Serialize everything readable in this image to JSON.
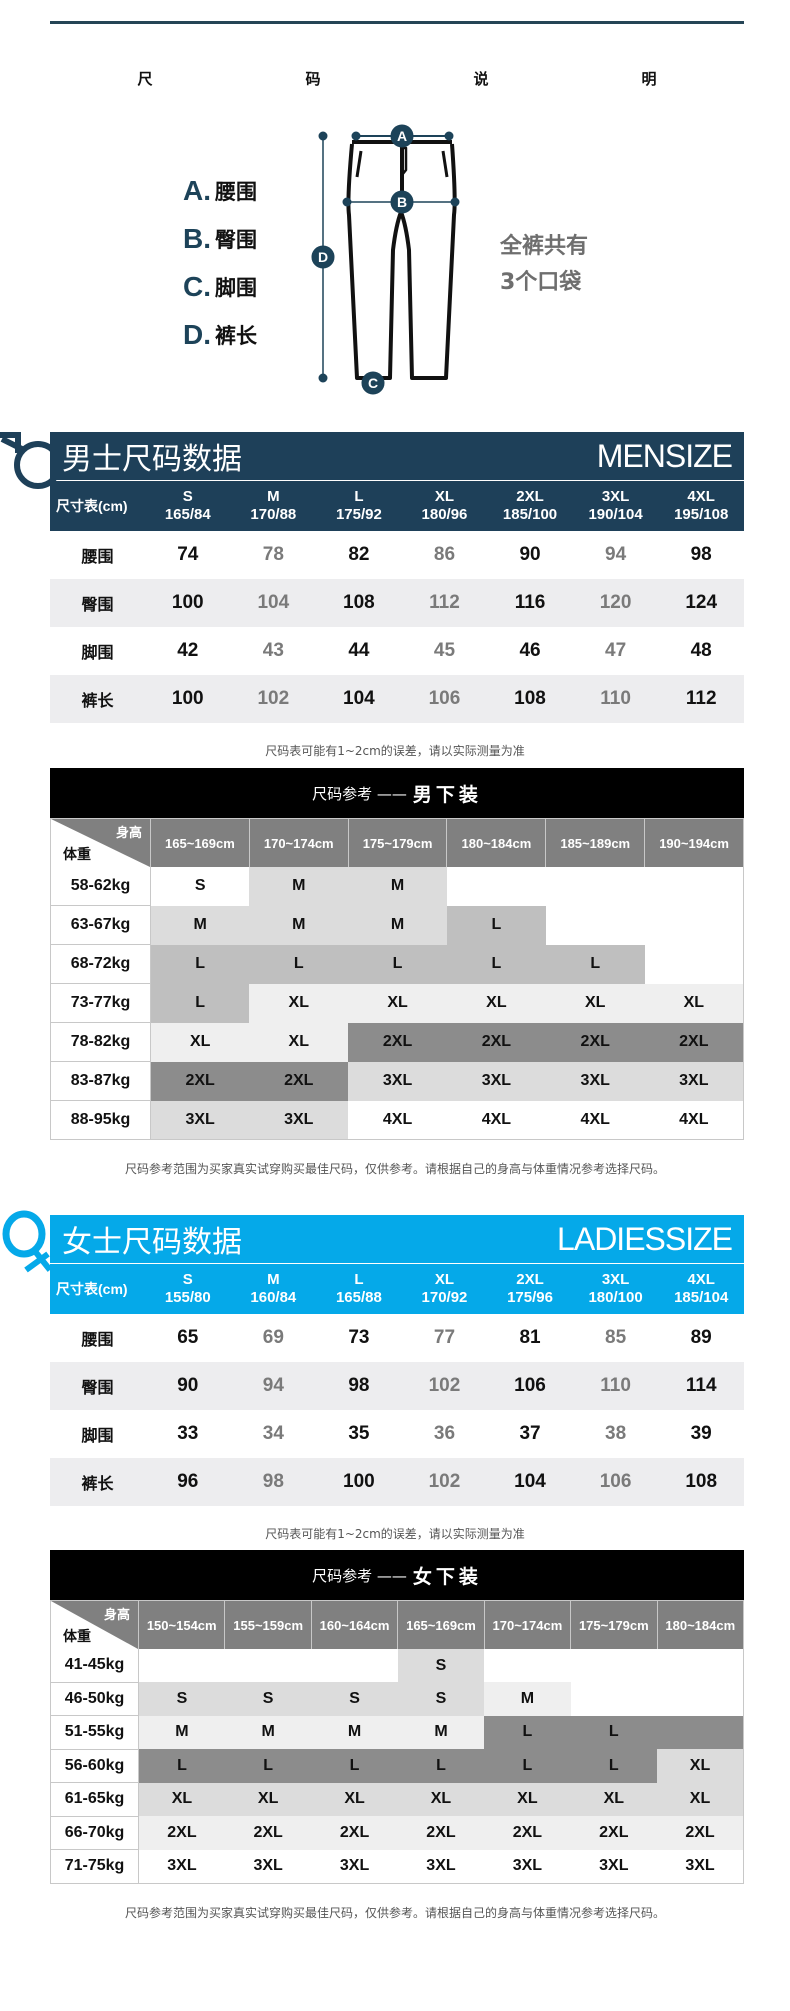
{
  "header": {
    "heading_chars": [
      "尺",
      "码",
      "说",
      "明"
    ]
  },
  "diagram": {
    "legend": [
      {
        "letter": "A.",
        "text": "腰围"
      },
      {
        "letter": "B.",
        "text": "臀围"
      },
      {
        "letter": "C.",
        "text": "脚围"
      },
      {
        "letter": "D.",
        "text": "裤长"
      }
    ],
    "markers": {
      "a": "A",
      "b": "B",
      "c": "C",
      "d": "D"
    },
    "pocket_note": [
      "全裤共有",
      "3个口袋"
    ]
  },
  "colors": {
    "men_accent": "#1e4059",
    "women_accent": "#05a9e9",
    "ref_header": "#808080"
  },
  "men": {
    "title_cn": "男士尺码数据",
    "title_en": "MENSIZE",
    "gender_icon": "male-symbol-icon",
    "corner_label": "尺寸表(cm)",
    "sizes": [
      {
        "size": "S",
        "spec": "165/84"
      },
      {
        "size": "M",
        "spec": "170/88"
      },
      {
        "size": "L",
        "spec": "175/92"
      },
      {
        "size": "XL",
        "spec": "180/96"
      },
      {
        "size": "2XL",
        "spec": "185/100"
      },
      {
        "size": "3XL",
        "spec": "190/104"
      },
      {
        "size": "4XL",
        "spec": "195/108"
      }
    ],
    "rows": [
      {
        "label": "腰围",
        "values": [
          "74",
          "78",
          "82",
          "86",
          "90",
          "94",
          "98"
        ]
      },
      {
        "label": "臀围",
        "values": [
          "100",
          "104",
          "108",
          "112",
          "116",
          "120",
          "124"
        ]
      },
      {
        "label": "脚围",
        "values": [
          "42",
          "43",
          "44",
          "45",
          "46",
          "47",
          "48"
        ]
      },
      {
        "label": "裤长",
        "values": [
          "100",
          "102",
          "104",
          "106",
          "108",
          "110",
          "112"
        ]
      }
    ],
    "note": "尺码表可能有1~2cm的误差，请以实际测量为准"
  },
  "men_ref": {
    "band_prefix": "尺码参考 ——",
    "band_title": "男下装",
    "corner_height": "身高",
    "corner_weight": "体重",
    "heights": [
      "165~169cm",
      "170~174cm",
      "175~179cm",
      "180~184cm",
      "185~189cm",
      "190~194cm"
    ],
    "rows": [
      {
        "weight": "58-62kg",
        "sizes": [
          "S",
          "M",
          "M",
          "",
          "",
          ""
        ],
        "bg": [
          "#ffffff",
          "#dcdcdc",
          "#dcdcdc",
          "#ffffff",
          "#ffffff",
          "#ffffff"
        ]
      },
      {
        "weight": "63-67kg",
        "sizes": [
          "M",
          "M",
          "M",
          "L",
          "",
          ""
        ],
        "bg": [
          "#dcdcdc",
          "#dcdcdc",
          "#dcdcdc",
          "#bfbfbf",
          "#ffffff",
          "#ffffff"
        ]
      },
      {
        "weight": "68-72kg",
        "sizes": [
          "L",
          "L",
          "L",
          "L",
          "L",
          ""
        ],
        "bg": [
          "#bfbfbf",
          "#bfbfbf",
          "#bfbfbf",
          "#bfbfbf",
          "#bfbfbf",
          "#ffffff"
        ]
      },
      {
        "weight": "73-77kg",
        "sizes": [
          "L",
          "XL",
          "XL",
          "XL",
          "XL",
          "XL"
        ],
        "bg": [
          "#bfbfbf",
          "#efefef",
          "#efefef",
          "#efefef",
          "#efefef",
          "#efefef"
        ]
      },
      {
        "weight": "78-82kg",
        "sizes": [
          "XL",
          "XL",
          "2XL",
          "2XL",
          "2XL",
          "2XL"
        ],
        "bg": [
          "#efefef",
          "#efefef",
          "#8c8c8c",
          "#8c8c8c",
          "#8c8c8c",
          "#8c8c8c"
        ]
      },
      {
        "weight": "83-87kg",
        "sizes": [
          "2XL",
          "2XL",
          "3XL",
          "3XL",
          "3XL",
          "3XL"
        ],
        "bg": [
          "#8c8c8c",
          "#8c8c8c",
          "#dcdcdc",
          "#dcdcdc",
          "#dcdcdc",
          "#dcdcdc"
        ]
      },
      {
        "weight": "88-95kg",
        "sizes": [
          "3XL",
          "3XL",
          "4XL",
          "4XL",
          "4XL",
          "4XL"
        ],
        "bg": [
          "#dcdcdc",
          "#dcdcdc",
          "#ffffff",
          "#ffffff",
          "#ffffff",
          "#ffffff"
        ]
      }
    ],
    "note": "尺码参考范围为买家真实试穿购买最佳尺码，仅供参考。请根据自己的身高与体重情况参考选择尺码。"
  },
  "women": {
    "title_cn": "女士尺码数据",
    "title_en": "LADIESSIZE",
    "gender_icon": "female-symbol-icon",
    "corner_label": "尺寸表(cm)",
    "sizes": [
      {
        "size": "S",
        "spec": "155/80"
      },
      {
        "size": "M",
        "spec": "160/84"
      },
      {
        "size": "L",
        "spec": "165/88"
      },
      {
        "size": "XL",
        "spec": "170/92"
      },
      {
        "size": "2XL",
        "spec": "175/96"
      },
      {
        "size": "3XL",
        "spec": "180/100"
      },
      {
        "size": "4XL",
        "spec": "185/104"
      }
    ],
    "rows": [
      {
        "label": "腰围",
        "values": [
          "65",
          "69",
          "73",
          "77",
          "81",
          "85",
          "89"
        ]
      },
      {
        "label": "臀围",
        "values": [
          "90",
          "94",
          "98",
          "102",
          "106",
          "110",
          "114"
        ]
      },
      {
        "label": "脚围",
        "values": [
          "33",
          "34",
          "35",
          "36",
          "37",
          "38",
          "39"
        ]
      },
      {
        "label": "裤长",
        "values": [
          "96",
          "98",
          "100",
          "102",
          "104",
          "106",
          "108"
        ]
      }
    ],
    "note": "尺码表可能有1~2cm的误差，请以实际测量为准"
  },
  "women_ref": {
    "band_prefix": "尺码参考 ——",
    "band_title": "女下装",
    "corner_height": "身高",
    "corner_weight": "体重",
    "heights": [
      "150~154cm",
      "155~159cm",
      "160~164cm",
      "165~169cm",
      "170~174cm",
      "175~179cm",
      "180~184cm"
    ],
    "rows": [
      {
        "weight": "41-45kg",
        "sizes": [
          "",
          "",
          "",
          "S",
          "",
          "",
          ""
        ],
        "bg": [
          "#ffffff",
          "#ffffff",
          "#ffffff",
          "#dcdcdc",
          "#ffffff",
          "#ffffff",
          "#ffffff"
        ]
      },
      {
        "weight": "46-50kg",
        "sizes": [
          "S",
          "S",
          "S",
          "S",
          "M",
          "",
          ""
        ],
        "bg": [
          "#dcdcdc",
          "#dcdcdc",
          "#dcdcdc",
          "#dcdcdc",
          "#efefef",
          "#ffffff",
          "#ffffff"
        ]
      },
      {
        "weight": "51-55kg",
        "sizes": [
          "M",
          "M",
          "M",
          "M",
          "L",
          "L",
          ""
        ],
        "bg": [
          "#efefef",
          "#efefef",
          "#efefef",
          "#efefef",
          "#8c8c8c",
          "#8c8c8c",
          "#8c8c8c"
        ]
      },
      {
        "weight": "56-60kg",
        "sizes": [
          "L",
          "L",
          "L",
          "L",
          "L",
          "L",
          "XL"
        ],
        "bg": [
          "#8c8c8c",
          "#8c8c8c",
          "#8c8c8c",
          "#8c8c8c",
          "#8c8c8c",
          "#8c8c8c",
          "#dcdcdc"
        ]
      },
      {
        "weight": "61-65kg",
        "sizes": [
          "XL",
          "XL",
          "XL",
          "XL",
          "XL",
          "XL",
          "XL"
        ],
        "bg": [
          "#dcdcdc",
          "#dcdcdc",
          "#dcdcdc",
          "#dcdcdc",
          "#dcdcdc",
          "#dcdcdc",
          "#dcdcdc"
        ]
      },
      {
        "weight": "66-70kg",
        "sizes": [
          "2XL",
          "2XL",
          "2XL",
          "2XL",
          "2XL",
          "2XL",
          "2XL"
        ],
        "bg": [
          "#efefef",
          "#efefef",
          "#efefef",
          "#efefef",
          "#efefef",
          "#efefef",
          "#efefef"
        ]
      },
      {
        "weight": "71-75kg",
        "sizes": [
          "3XL",
          "3XL",
          "3XL",
          "3XL",
          "3XL",
          "3XL",
          "3XL"
        ],
        "bg": [
          "#ffffff",
          "#ffffff",
          "#ffffff",
          "#ffffff",
          "#ffffff",
          "#ffffff",
          "#ffffff"
        ]
      }
    ],
    "note": "尺码参考范围为买家真实试穿购买最佳尺码，仅供参考。请根据自己的身高与体重情况参考选择尺码。"
  }
}
